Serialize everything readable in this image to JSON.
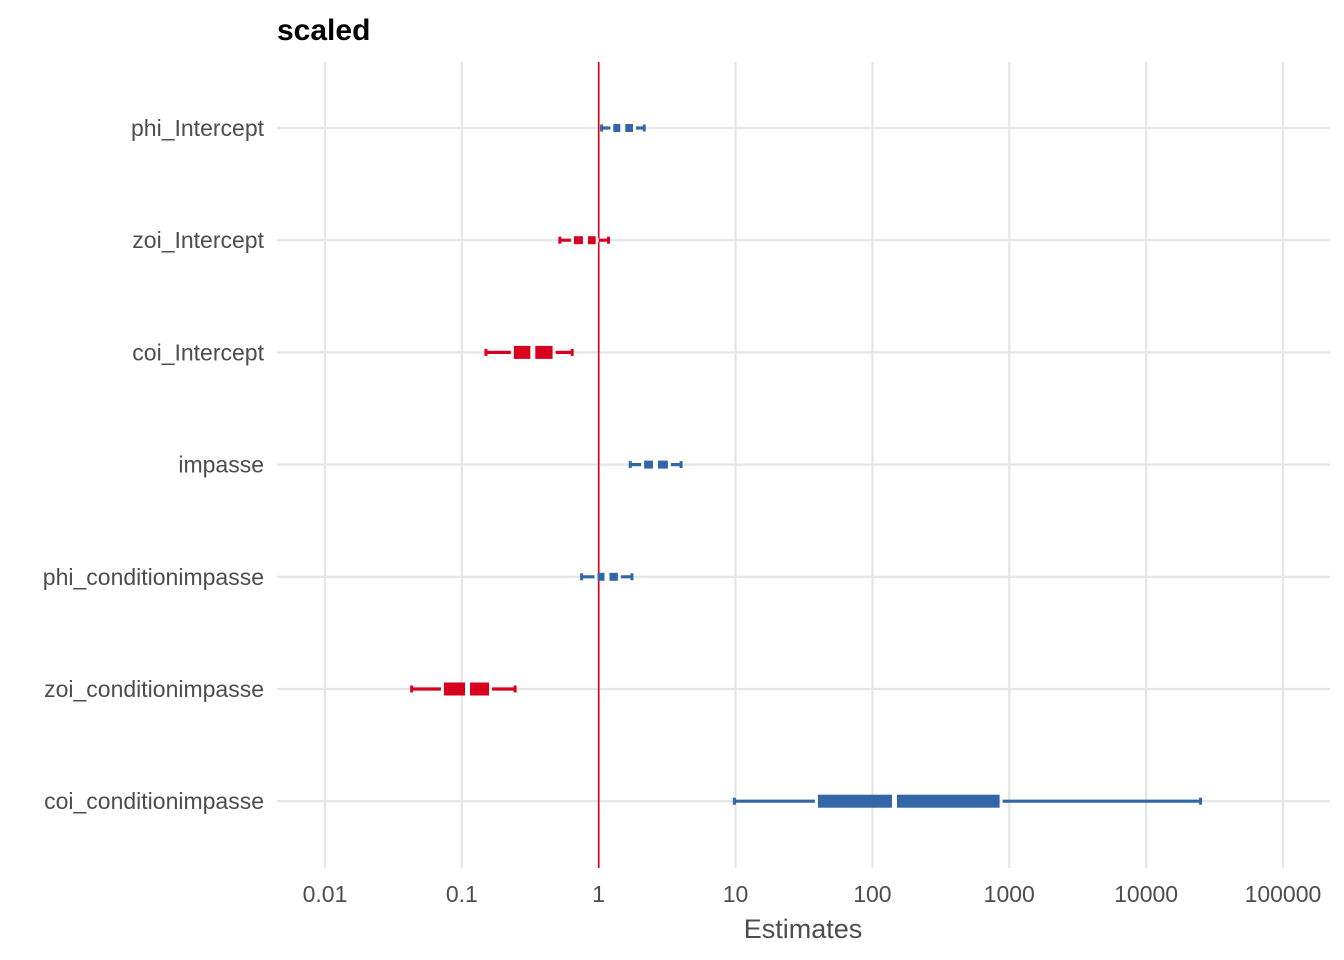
{
  "chart_data": {
    "type": "forest",
    "title": "scaled",
    "xlabel": "Estimates",
    "ylabel": "",
    "x_scale": "log10",
    "xlim": [
      0.005,
      140000
    ],
    "xticks": [
      0.01,
      0.1,
      1,
      10,
      100,
      1000,
      10000,
      100000
    ],
    "xtick_labels": [
      "0.01",
      "0.1",
      "1",
      "10",
      "100",
      "1000",
      "10000",
      "100000"
    ],
    "reference_line": 1,
    "grid": true,
    "legend": "none",
    "colors": {
      "positive": "#3366a6",
      "negative": "#d7001f",
      "reference": "#d7001f",
      "grid": "#e5e5e5"
    },
    "terms": [
      {
        "label": "phi_Intercept",
        "estimate": 1.5,
        "ci_inner": [
          1.28,
          1.78
        ],
        "ci_outer": [
          1.05,
          2.15
        ],
        "direction": "positive"
      },
      {
        "label": "zoi_Intercept",
        "estimate": 0.8,
        "ci_inner": [
          0.66,
          0.95
        ],
        "ci_outer": [
          0.52,
          1.18
        ],
        "direction": "negative"
      },
      {
        "label": "coi_Intercept",
        "estimate": 0.33,
        "ci_inner": [
          0.24,
          0.46
        ],
        "ci_outer": [
          0.15,
          0.64
        ],
        "direction": "negative"
      },
      {
        "label": "impasse",
        "estimate": 2.6,
        "ci_inner": [
          2.15,
          3.2
        ],
        "ci_outer": [
          1.7,
          4.0
        ],
        "direction": "positive"
      },
      {
        "label": "phi_conditionimpasse",
        "estimate": 1.15,
        "ci_inner": [
          0.98,
          1.38
        ],
        "ci_outer": [
          0.75,
          1.75
        ],
        "direction": "positive"
      },
      {
        "label": "zoi_conditionimpasse",
        "estimate": 0.11,
        "ci_inner": [
          0.074,
          0.158
        ],
        "ci_outer": [
          0.043,
          0.245
        ],
        "direction": "negative"
      },
      {
        "label": "coi_conditionimpasse",
        "estimate": 145,
        "ci_inner": [
          40,
          850
        ],
        "ci_outer": [
          9.8,
          25000
        ],
        "direction": "positive"
      }
    ]
  }
}
